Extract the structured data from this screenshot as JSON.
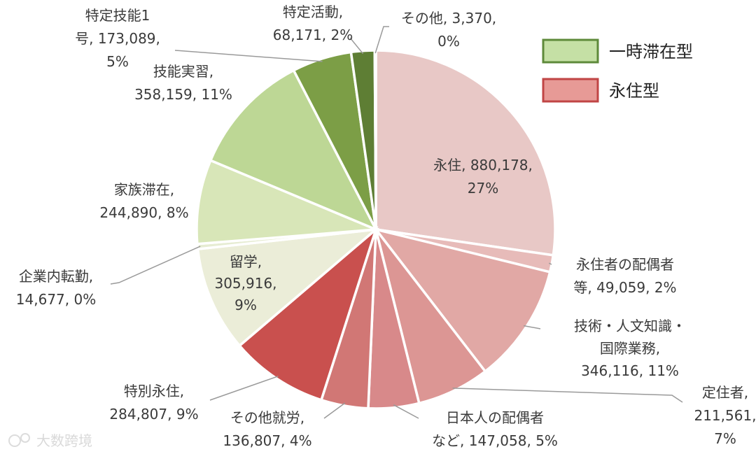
{
  "chart_data": {
    "type": "pie",
    "title": "",
    "legend_position": "top-right",
    "groups": [
      {
        "name": "一時滞在型",
        "fill": "#c5e0a5",
        "stroke": "#5e8a3a"
      },
      {
        "name": "永住型",
        "fill": "#e79a96",
        "stroke": "#c04545"
      }
    ],
    "slices": [
      {
        "label": "永住",
        "value": 880178,
        "percent": "27%",
        "color": "#e8c8c6",
        "lines": [
          "永住, 880,178,",
          "27%"
        ]
      },
      {
        "label": "永住者の配偶者等",
        "value": 49059,
        "percent": "2%",
        "color": "#e7bbb9",
        "lines": [
          "永住者の配偶者",
          "等, 49,059, 2%"
        ]
      },
      {
        "label": "技術・人文知識・国際業務",
        "value": 346116,
        "percent": "11%",
        "color": "#e1a8a5",
        "lines": [
          "技術・人文知識・",
          "国際業務,",
          "346,116, 11%"
        ]
      },
      {
        "label": "定住者",
        "value": 211561,
        "percent": "7%",
        "color": "#dc9694",
        "lines": [
          "定住者,",
          "211,561,",
          "7%"
        ]
      },
      {
        "label": "日本人の配偶者など",
        "value": 147058,
        "percent": "5%",
        "color": "#d8898a",
        "lines": [
          "日本人の配偶者",
          "など, 147,058, 5%"
        ]
      },
      {
        "label": "その他就労",
        "value": 136807,
        "percent": "4%",
        "color": "#d17775",
        "lines": [
          "その他就労,",
          "136,807, 4%"
        ]
      },
      {
        "label": "特別永住",
        "value": 284807,
        "percent": "9%",
        "color": "#c9504e",
        "lines": [
          "特別永住,",
          "284,807, 9%"
        ]
      },
      {
        "label": "留学",
        "value": 305916,
        "percent": "9%",
        "color": "#ebedd8",
        "lines": [
          "留学,",
          "305,916,",
          "9%"
        ]
      },
      {
        "label": "企業内転勤",
        "value": 14677,
        "percent": "0%",
        "color": "#e6ecd2",
        "lines": [
          "企業内転勤,",
          "14,677, 0%"
        ]
      },
      {
        "label": "家族滞在",
        "value": 244890,
        "percent": "8%",
        "color": "#d8e6b8",
        "lines": [
          "家族滞在,",
          "244,890, 8%"
        ]
      },
      {
        "label": "技能実習",
        "value": 358159,
        "percent": "11%",
        "color": "#bdd795",
        "lines": [
          "技能実習,",
          "358,159, 11%"
        ]
      },
      {
        "label": "特定技能1号",
        "value": 173089,
        "percent": "5%",
        "color": "#7c9e46",
        "lines": [
          "特定技能1",
          "号, 173,089,",
          "5%"
        ]
      },
      {
        "label": "特定活動",
        "value": 68171,
        "percent": "2%",
        "color": "#5e7e34",
        "lines": [
          "特定活動,",
          "68,171, 2%"
        ]
      },
      {
        "label": "その他",
        "value": 3370,
        "percent": "0%",
        "color": "#45592b",
        "lines": [
          "その他, 3,370,",
          "0%"
        ]
      }
    ]
  },
  "watermark": "大数跨境"
}
